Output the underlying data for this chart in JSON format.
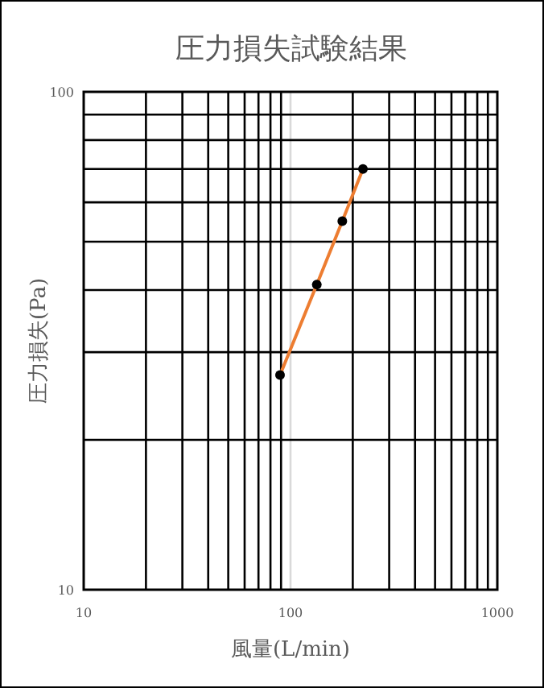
{
  "chart_data": {
    "type": "line",
    "title": "圧力損失試験結果",
    "xlabel": "風量(L/min)",
    "ylabel": "圧力損失(Pa)",
    "log": "xy",
    "xlim": [
      10,
      1000
    ],
    "ylim": [
      10,
      100
    ],
    "xticks": [
      10,
      100,
      1000
    ],
    "yticks": [
      10,
      100
    ],
    "grid": true,
    "marker": "circle",
    "line_style": "solid",
    "series": [
      {
        "color": "#ed7d31",
        "x": [
          89,
          134,
          178,
          224
        ],
        "values": [
          27,
          41,
          55,
          70
        ]
      }
    ]
  }
}
